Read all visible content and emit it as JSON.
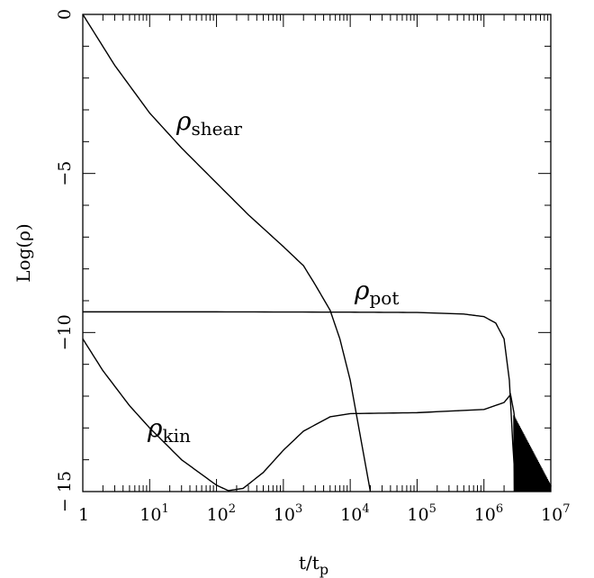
{
  "chart_data": {
    "type": "line",
    "xscale": "log",
    "xlabel": "t/t",
    "xlabel_sub": "p",
    "ylabel": "Log(ρ)",
    "xlim": [
      1,
      10000000
    ],
    "ylim": [
      -15,
      0
    ],
    "x_ticks": [
      {
        "value": 1,
        "base": "1",
        "exp": ""
      },
      {
        "value": 10,
        "base": "10",
        "exp": "1"
      },
      {
        "value": 100,
        "base": "10",
        "exp": "2"
      },
      {
        "value": 1000,
        "base": "10",
        "exp": "3"
      },
      {
        "value": 10000,
        "base": "10",
        "exp": "4"
      },
      {
        "value": 100000,
        "base": "10",
        "exp": "5"
      },
      {
        "value": 1000000,
        "base": "10",
        "exp": "6"
      },
      {
        "value": 10000000,
        "base": "10",
        "exp": "7"
      }
    ],
    "y_ticks": [
      {
        "value": 0,
        "label": "0"
      },
      {
        "value": -5,
        "label": "−5"
      },
      {
        "value": -10,
        "label": "−10"
      },
      {
        "value": -15,
        "label": "− 15"
      }
    ],
    "series": [
      {
        "name": "shear",
        "label_symbol": "ρ",
        "label_sub": "shear",
        "points": [
          [
            1,
            0
          ],
          [
            3,
            -1.6
          ],
          [
            10,
            -3.1
          ],
          [
            30,
            -4.2
          ],
          [
            100,
            -5.3
          ],
          [
            300,
            -6.3
          ],
          [
            1000,
            -7.3
          ],
          [
            2000,
            -7.9
          ],
          [
            3000,
            -8.5
          ],
          [
            5000,
            -9.3
          ],
          [
            7000,
            -10.2
          ],
          [
            10000,
            -11.5
          ],
          [
            14000,
            -13.2
          ],
          [
            20000,
            -15
          ]
        ]
      },
      {
        "name": "pot",
        "label_symbol": "ρ",
        "label_sub": "pot",
        "points": [
          [
            1,
            -9.35
          ],
          [
            100,
            -9.35
          ],
          [
            10000,
            -9.36
          ],
          [
            100000,
            -9.37
          ],
          [
            500000,
            -9.42
          ],
          [
            1000000,
            -9.5
          ],
          [
            1500000,
            -9.7
          ],
          [
            2000000,
            -10.2
          ],
          [
            2400000,
            -11.5
          ],
          [
            2700000,
            -13.5
          ],
          [
            3000000,
            -15
          ]
        ]
      },
      {
        "name": "kin",
        "label_symbol": "ρ",
        "label_sub": "kin",
        "points": [
          [
            1,
            -10.2
          ],
          [
            2,
            -11.2
          ],
          [
            5,
            -12.3
          ],
          [
            10,
            -13.0
          ],
          [
            30,
            -14.0
          ],
          [
            100,
            -14.8
          ],
          [
            150,
            -14.97
          ],
          [
            250,
            -14.9
          ],
          [
            500,
            -14.4
          ],
          [
            1000,
            -13.7
          ],
          [
            2000,
            -13.1
          ],
          [
            5000,
            -12.65
          ],
          [
            10000,
            -12.55
          ],
          [
            100000,
            -12.52
          ],
          [
            1000000,
            -12.42
          ],
          [
            2000000,
            -12.2
          ],
          [
            2500000,
            -11.95
          ],
          [
            2800000,
            -12.5
          ],
          [
            3500000,
            -14.2
          ],
          [
            6000000,
            -14.8
          ],
          [
            8000000,
            -15
          ]
        ]
      }
    ]
  }
}
